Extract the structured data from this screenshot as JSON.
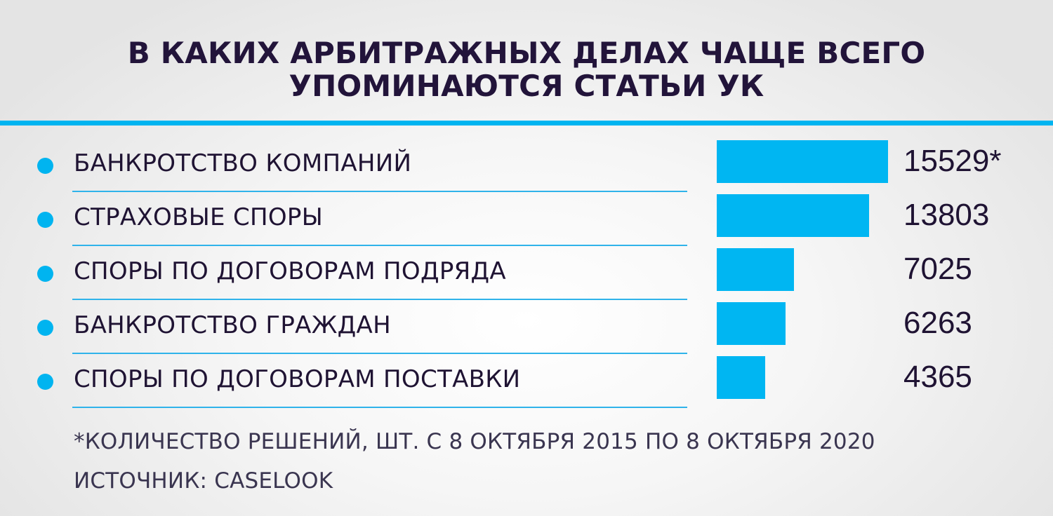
{
  "title": {
    "line1": "В КАКИХ АРБИТРАЖНЫХ ДЕЛАХ ЧАЩЕ ВСЕГО",
    "line2": "УПОМИНАЮТСЯ СТАТЬИ УК"
  },
  "colors": {
    "accent": "#00b4f0",
    "text": "#22143a"
  },
  "chart_data": {
    "type": "bar",
    "orientation": "horizontal",
    "categories": [
      "БАНКРОТСТВО КОМПАНИЙ",
      "СТРАХОВЫЕ СПОРЫ",
      "СПОРЫ ПО ДОГОВОРАМ ПОДРЯДА",
      "БАНКРОТСТВО ГРАЖДАН",
      "СПОРЫ ПО ДОГОВОРАМ ПОСТАВКИ"
    ],
    "values": [
      15529,
      13803,
      7025,
      6263,
      4365
    ],
    "value_labels": [
      "15529*",
      "13803",
      "7025",
      "6263",
      "4365"
    ],
    "xlim": [
      0,
      15529
    ],
    "grid": false,
    "legend": "none"
  },
  "footnote": {
    "note": "*КОЛИЧЕСТВО РЕШЕНИЙ, ШТ. С 8 ОКТЯБРЯ 2015 ПО 8 ОКТЯБРЯ 2020",
    "source": "ИСТОЧНИК: CASELOOK"
  }
}
